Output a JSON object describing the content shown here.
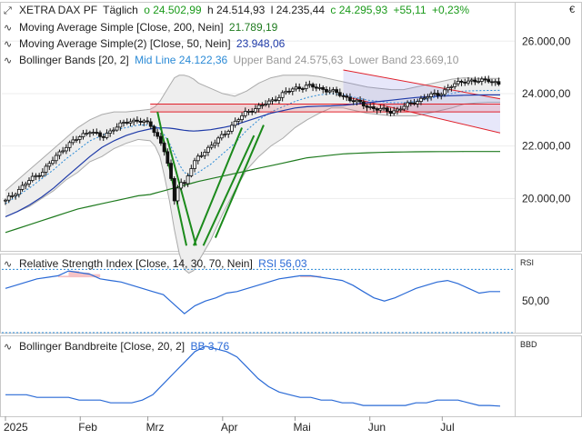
{
  "header": {
    "instrument": "XETRA DAX PF",
    "interval": "Täglich",
    "open": "o 24.502,99",
    "high": "h 24.514,93",
    "low": "l 24.235,44",
    "close": "c 24.295,93",
    "change": "+55,11",
    "change_pct": "+0,23%",
    "currency_symbol": "€",
    "up_color": "#1a9a1a"
  },
  "indicators": {
    "sma200": {
      "label": "Moving Average Simple [Close, 200, Nein]",
      "value": "21.789,19",
      "color": "#1e7a1e"
    },
    "sma50": {
      "label": "Moving Average Simple(2) [Close, 50, Nein]",
      "value": "23.948,06",
      "color": "#1e3aa8"
    },
    "bb": {
      "label": "Bollinger Bands [20, 2]",
      "mid": "Mid Line 24.122,36",
      "upper": "Upper Band 24.575,63",
      "lower": "Lower Band 23.669,10",
      "color": "#2a8ad6"
    },
    "rsi": {
      "label": "Relative Strength Index [Close, 14, 30, 70, Nein]",
      "value": "RSI 56,03",
      "axis_title": "RSI",
      "color": "#2a6ad6"
    },
    "bbw": {
      "label": "Bollinger Bandbreite [Close, 20, 2]",
      "value": "BB 3,76",
      "axis_title": "BBD",
      "color": "#2a6ad6"
    }
  },
  "chart_data": [
    {
      "type": "candlestick",
      "ylim": [
        18000,
        27500
      ],
      "yticks": [
        "26.000,00",
        "24.000,00",
        "22.000,00",
        "20.000,00"
      ],
      "ytick_values": [
        26000,
        24000,
        22000,
        20000
      ],
      "x": [
        0,
        5,
        10,
        15,
        20,
        25,
        30,
        35,
        40,
        45,
        50,
        55,
        60,
        62,
        64,
        66,
        68,
        70,
        72,
        74,
        76,
        78,
        80,
        85,
        90,
        95,
        100,
        105,
        110,
        115,
        120,
        125,
        130,
        135,
        140,
        145,
        150,
        155,
        160,
        165,
        170,
        175,
        180,
        185,
        190,
        195,
        200,
        205
      ],
      "close": [
        19900,
        20300,
        20700,
        21000,
        21500,
        22000,
        22300,
        22600,
        22300,
        22700,
        22900,
        23000,
        22800,
        22500,
        22200,
        21800,
        21000,
        19900,
        20700,
        20500,
        21000,
        21300,
        21600,
        22000,
        22400,
        22900,
        23300,
        23500,
        23700,
        24000,
        24200,
        24300,
        24200,
        24100,
        23900,
        23700,
        23500,
        23400,
        23300,
        23500,
        23700,
        23900,
        24000,
        24300,
        24500,
        24450,
        24550,
        24296
      ],
      "sma200": [
        18700,
        18850,
        19000,
        19150,
        19300,
        19450,
        19600,
        19700,
        19800,
        19900,
        20000,
        20100,
        20150,
        20200,
        20250,
        20300,
        20350,
        20400,
        20450,
        20500,
        20550,
        20600,
        20650,
        20750,
        20850,
        20950,
        21050,
        21150,
        21250,
        21350,
        21450,
        21550,
        21600,
        21650,
        21700,
        21720,
        21740,
        21755,
        21765,
        21772,
        21778,
        21782,
        21785,
        21787,
        21788,
        21789,
        21789,
        21789
      ],
      "sma50": [
        19300,
        19500,
        19750,
        20050,
        20400,
        20800,
        21200,
        21600,
        21950,
        22200,
        22400,
        22550,
        22650,
        22680,
        22690,
        22690,
        22680,
        22660,
        22630,
        22600,
        22580,
        22570,
        22580,
        22620,
        22700,
        22800,
        22950,
        23100,
        23250,
        23350,
        23450,
        23500,
        23520,
        23530,
        23550,
        23600,
        23650,
        23700,
        23750,
        23800,
        23850,
        23880,
        23900,
        23920,
        23935,
        23945,
        23948,
        23948
      ],
      "bb_mid": [
        19800,
        20100,
        20400,
        20750,
        21100,
        21500,
        21850,
        22200,
        22400,
        22600,
        22700,
        22800,
        22800,
        22750,
        22650,
        22400,
        22100,
        21700,
        21300,
        21000,
        20900,
        20900,
        21000,
        21300,
        21700,
        22100,
        22600,
        23000,
        23300,
        23500,
        23700,
        23850,
        23950,
        24000,
        23950,
        23850,
        23750,
        23700,
        23650,
        23650,
        23700,
        23800,
        23900,
        24000,
        24100,
        24110,
        24120,
        24122
      ],
      "bb_upper": [
        20300,
        20700,
        21100,
        21500,
        21900,
        22300,
        22700,
        23000,
        23200,
        23300,
        23300,
        23350,
        23400,
        23500,
        23700,
        24000,
        24300,
        24600,
        24700,
        24700,
        24650,
        24550,
        24400,
        24200,
        24000,
        23900,
        24100,
        24400,
        24600,
        24700,
        24700,
        24700,
        24650,
        24550,
        24450,
        24350,
        24250,
        24200,
        24150,
        24150,
        24250,
        24350,
        24450,
        24550,
        24600,
        24580,
        24576,
        24576
      ],
      "bb_lower": [
        19300,
        19500,
        19700,
        20000,
        20300,
        20700,
        21000,
        21400,
        21600,
        21900,
        22100,
        22250,
        22200,
        22000,
        21600,
        20800,
        19900,
        18800,
        17900,
        17300,
        17150,
        17250,
        17600,
        18400,
        19400,
        20300,
        21100,
        21600,
        22000,
        22300,
        22700,
        23000,
        23250,
        23450,
        23450,
        23350,
        23250,
        23200,
        23150,
        23150,
        23150,
        23250,
        23350,
        23450,
        23600,
        23640,
        23669,
        23669
      ],
      "hlines": [
        23600,
        23300
      ],
      "downtrend_upper": [
        [
          140,
          24900
        ],
        [
          205,
          23800
        ]
      ],
      "downtrend_lower": [
        [
          140,
          23900
        ],
        [
          205,
          22500
        ]
      ]
    },
    {
      "type": "line",
      "name": "RSI",
      "ylim": [
        30,
        80
      ],
      "yticks": [
        "50,00"
      ],
      "ytick_values": [
        50
      ],
      "upper_threshold": 70,
      "lower_threshold": 30,
      "values": [
        58,
        60,
        62,
        64,
        65,
        66,
        69,
        68,
        67,
        64,
        63,
        62,
        60,
        58,
        56,
        54,
        48,
        42,
        47,
        50,
        52,
        55,
        56,
        58,
        60,
        62,
        64,
        65,
        66,
        66,
        65,
        64,
        63,
        60,
        56,
        52,
        50,
        52,
        55,
        58,
        60,
        62,
        63,
        61,
        58,
        55,
        56,
        56
      ]
    },
    {
      "type": "line",
      "name": "Bollinger Bandbreite",
      "ylim": [
        0,
        30
      ],
      "values": [
        8,
        8,
        8,
        7,
        7,
        7,
        7,
        6,
        6,
        6,
        5,
        5,
        5,
        6,
        8,
        12,
        16,
        20,
        24,
        26,
        25,
        24,
        22,
        18,
        14,
        11,
        9,
        8,
        7,
        7,
        6,
        6,
        5,
        5,
        4,
        4,
        4,
        4,
        4,
        5,
        5,
        6,
        6,
        6,
        5,
        4,
        4,
        3.76
      ]
    }
  ],
  "xaxis": {
    "labels": [
      "2025",
      "Feb",
      "Mrz",
      "Apr",
      "Mai",
      "Jun",
      "Jul"
    ],
    "positions": [
      0,
      31,
      59,
      90,
      120,
      151,
      181
    ],
    "max": 205
  }
}
